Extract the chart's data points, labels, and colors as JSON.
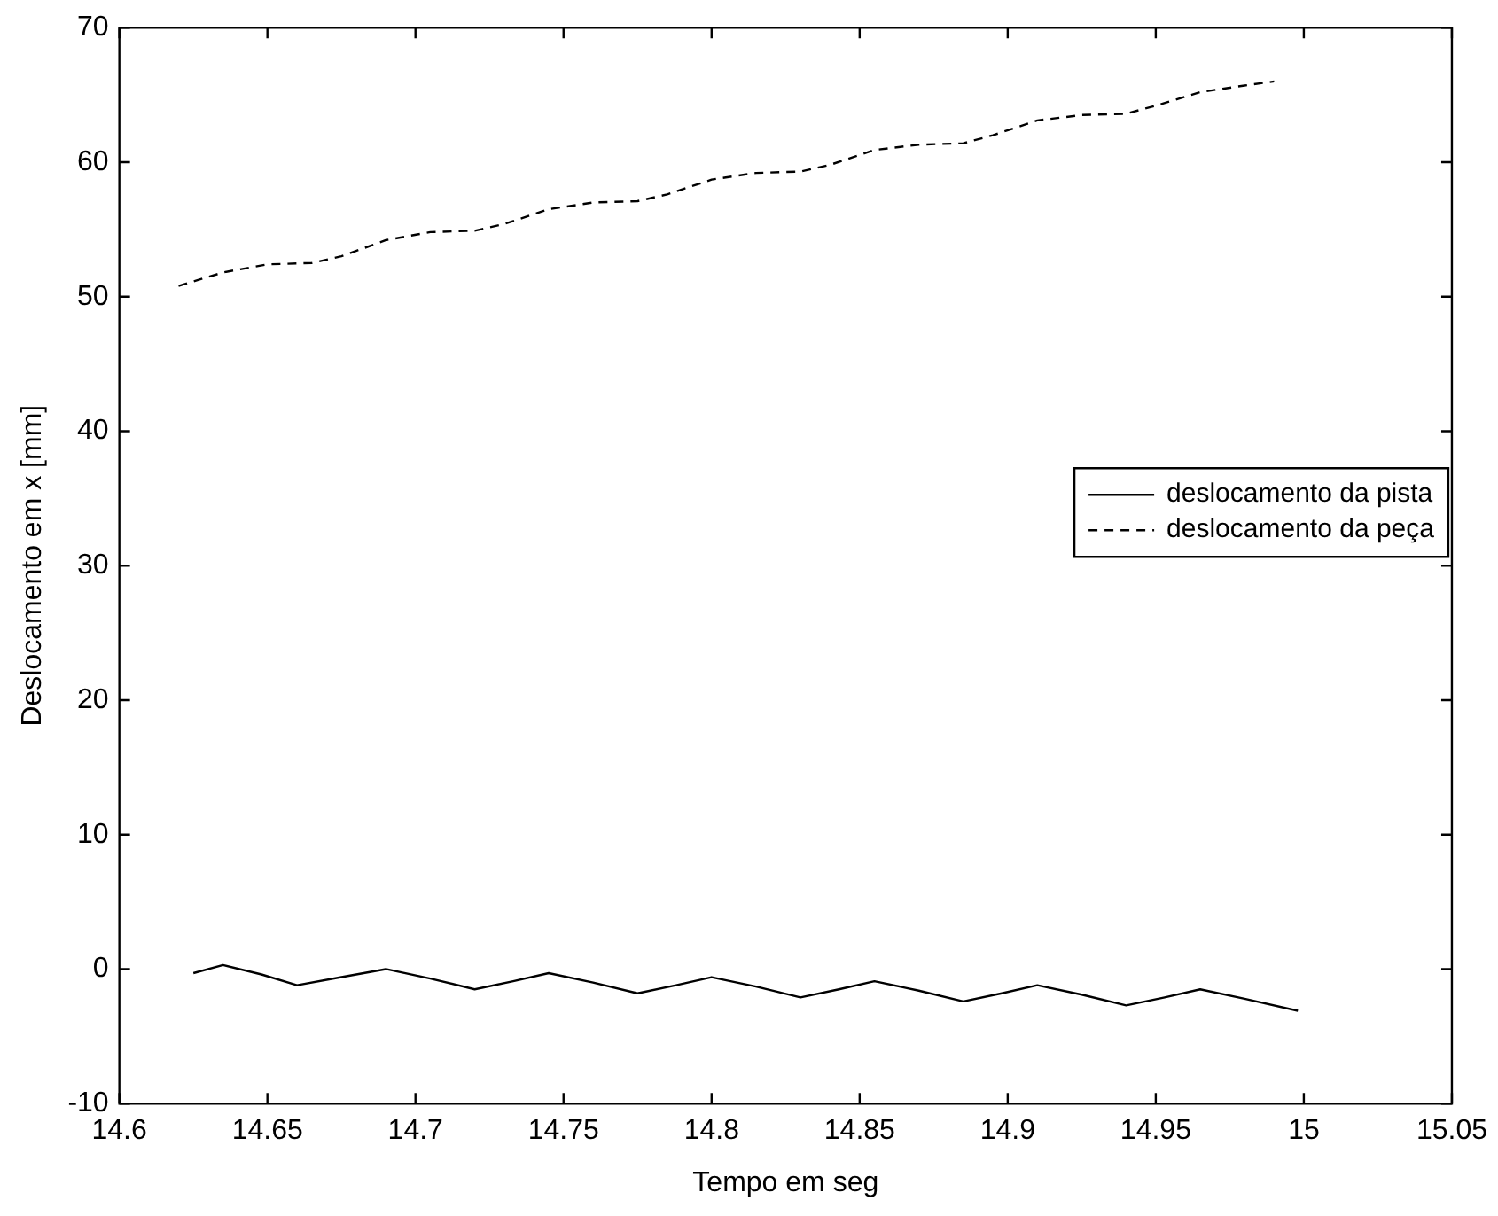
{
  "chart_data": {
    "type": "line",
    "xlabel": "Tempo em seg",
    "ylabel": "Deslocamento em x [mm]",
    "xlim": [
      14.6,
      15.05
    ],
    "xticks": [
      14.6,
      14.65,
      14.7,
      14.75,
      14.8,
      14.85,
      14.9,
      14.95,
      15,
      15.05
    ],
    "ylim": [
      -10,
      70
    ],
    "yticks": [
      -10,
      0,
      10,
      20,
      30,
      40,
      50,
      60,
      70
    ],
    "grid": false,
    "legend": "right",
    "marker": "none",
    "series": [
      {
        "name": "deslocamento da pista",
        "color": "#000000",
        "line_style": "solid",
        "x": [
          14.625,
          14.635,
          14.648,
          14.66,
          14.675,
          14.69,
          14.705,
          14.72,
          14.733,
          14.745,
          14.76,
          14.775,
          14.788,
          14.8,
          14.815,
          14.83,
          14.843,
          14.855,
          14.87,
          14.885,
          14.898,
          14.91,
          14.925,
          14.94,
          14.953,
          14.965,
          14.98,
          14.998
        ],
        "values": [
          -0.3,
          0.3,
          -0.4,
          -1.2,
          -0.6,
          0,
          -0.7,
          -1.5,
          -0.9,
          -0.3,
          -1.0,
          -1.8,
          -1.2,
          -0.6,
          -1.3,
          -2.1,
          -1.5,
          -0.9,
          -1.6,
          -2.4,
          -1.8,
          -1.2,
          -1.9,
          -2.7,
          -2.1,
          -1.5,
          -2.2,
          -3.1
        ]
      },
      {
        "name": "deslocamento da peça",
        "color": "#000000",
        "line_style": "dashed",
        "x": [
          14.62,
          14.635,
          14.65,
          14.665,
          14.675,
          14.69,
          14.705,
          14.72,
          14.73,
          14.745,
          14.76,
          14.775,
          14.785,
          14.8,
          14.815,
          14.83,
          14.84,
          14.855,
          14.87,
          14.885,
          14.895,
          14.91,
          14.925,
          14.94,
          14.95,
          14.965,
          14.98,
          14.99
        ],
        "values": [
          50.8,
          51.8,
          52.4,
          52.5,
          53.0,
          54.2,
          54.8,
          54.9,
          55.4,
          56.5,
          57.0,
          57.1,
          57.6,
          58.7,
          59.2,
          59.3,
          59.8,
          60.9,
          61.3,
          61.4,
          62.0,
          63.1,
          63.5,
          63.6,
          64.2,
          65.2,
          65.7,
          66.0
        ]
      }
    ]
  }
}
